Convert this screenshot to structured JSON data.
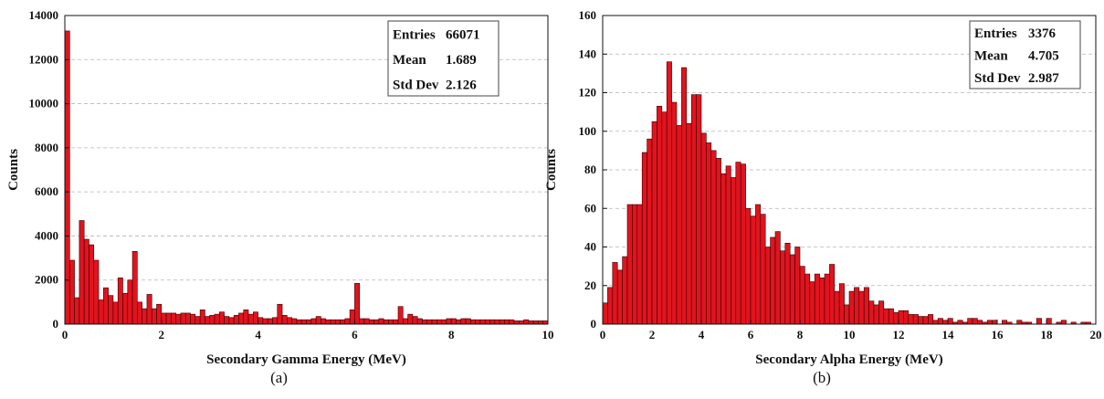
{
  "chart_data": [
    {
      "type": "bar",
      "xlabel": "Secondary Gamma Energy (MeV)",
      "ylabel": "Counts",
      "xlim": [
        0,
        10
      ],
      "ylim": [
        0,
        14000
      ],
      "xticks": [
        0,
        2,
        4,
        6,
        8,
        10
      ],
      "yticks": [
        0,
        2000,
        4000,
        6000,
        8000,
        10000,
        12000,
        14000
      ],
      "grid": "y-dashed",
      "bar_color": "#e0141e",
      "bin_width": 0.1,
      "x": [
        0.0,
        0.1,
        0.2,
        0.3,
        0.4,
        0.5,
        0.6,
        0.7,
        0.8,
        0.9,
        1.0,
        1.1,
        1.2,
        1.3,
        1.4,
        1.5,
        1.6,
        1.7,
        1.8,
        1.9,
        2.0,
        2.1,
        2.2,
        2.3,
        2.4,
        2.5,
        2.6,
        2.7,
        2.8,
        2.9,
        3.0,
        3.1,
        3.2,
        3.3,
        3.4,
        3.5,
        3.6,
        3.7,
        3.8,
        3.9,
        4.0,
        4.1,
        4.2,
        4.3,
        4.4,
        4.5,
        4.6,
        4.7,
        4.8,
        4.9,
        5.0,
        5.1,
        5.2,
        5.3,
        5.4,
        5.5,
        5.6,
        5.7,
        5.8,
        5.9,
        6.0,
        6.1,
        6.2,
        6.3,
        6.4,
        6.5,
        6.6,
        6.7,
        6.8,
        6.9,
        7.0,
        7.1,
        7.2,
        7.3,
        7.4,
        7.5,
        7.6,
        7.7,
        7.8,
        7.9,
        8.0,
        8.1,
        8.2,
        8.3,
        8.4,
        8.5,
        8.6,
        8.7,
        8.8,
        8.9,
        9.0,
        9.1,
        9.2,
        9.3,
        9.4,
        9.5,
        9.6,
        9.7,
        9.8,
        9.9
      ],
      "values": [
        13300,
        2900,
        1200,
        4700,
        3850,
        3600,
        2900,
        1100,
        1650,
        1300,
        1000,
        2100,
        1400,
        2000,
        3300,
        1000,
        700,
        1350,
        700,
        900,
        500,
        500,
        500,
        450,
        500,
        500,
        450,
        350,
        650,
        350,
        400,
        450,
        550,
        350,
        300,
        400,
        500,
        650,
        450,
        550,
        300,
        250,
        250,
        300,
        900,
        400,
        300,
        250,
        200,
        200,
        200,
        250,
        350,
        250,
        200,
        200,
        200,
        200,
        250,
        650,
        1850,
        250,
        250,
        200,
        200,
        250,
        200,
        200,
        200,
        800,
        250,
        450,
        350,
        250,
        200,
        200,
        200,
        200,
        200,
        250,
        250,
        200,
        250,
        250,
        200,
        200,
        200,
        200,
        200,
        200,
        200,
        200,
        200,
        150,
        150,
        200,
        150,
        150,
        150,
        150
      ],
      "stats": [
        {
          "label": "Entries",
          "value": "66071"
        },
        {
          "label": "Mean",
          "value": "1.689"
        },
        {
          "label": "Std Dev",
          "value": "2.126"
        }
      ],
      "stats_placement": "top-right",
      "caption": "(a)"
    },
    {
      "type": "bar",
      "xlabel": "Secondary Alpha Energy (MeV)",
      "ylabel": "Counts",
      "xlim": [
        0,
        20
      ],
      "ylim": [
        0,
        160
      ],
      "xticks": [
        0,
        2,
        4,
        6,
        8,
        10,
        12,
        14,
        16,
        18,
        20
      ],
      "yticks": [
        0,
        20,
        40,
        60,
        80,
        100,
        120,
        140,
        160
      ],
      "grid": "y-dashed",
      "bar_color": "#e0141e",
      "bin_width": 0.2,
      "x": [
        0.0,
        0.2,
        0.4,
        0.6,
        0.8,
        1.0,
        1.2,
        1.4,
        1.6,
        1.8,
        2.0,
        2.2,
        2.4,
        2.6,
        2.8,
        3.0,
        3.2,
        3.4,
        3.6,
        3.8,
        4.0,
        4.2,
        4.4,
        4.6,
        4.8,
        5.0,
        5.2,
        5.4,
        5.6,
        5.8,
        6.0,
        6.2,
        6.4,
        6.6,
        6.8,
        7.0,
        7.2,
        7.4,
        7.6,
        7.8,
        8.0,
        8.2,
        8.4,
        8.6,
        8.8,
        9.0,
        9.2,
        9.4,
        9.6,
        9.8,
        10.0,
        10.2,
        10.4,
        10.6,
        10.8,
        11.0,
        11.2,
        11.4,
        11.6,
        11.8,
        12.0,
        12.2,
        12.4,
        12.6,
        12.8,
        13.0,
        13.2,
        13.4,
        13.6,
        13.8,
        14.0,
        14.2,
        14.4,
        14.6,
        14.8,
        15.0,
        15.2,
        15.4,
        15.6,
        15.8,
        16.0,
        16.2,
        16.4,
        16.6,
        16.8,
        17.0,
        17.2,
        17.4,
        17.6,
        17.8,
        18.0,
        18.2,
        18.4,
        18.6,
        18.8,
        19.0,
        19.2,
        19.4,
        19.6,
        19.8
      ],
      "values": [
        11,
        19,
        32,
        28,
        35,
        62,
        62,
        62,
        89,
        96,
        105,
        113,
        110,
        136,
        115,
        103,
        133,
        104,
        119,
        119,
        99,
        94,
        90,
        86,
        78,
        82,
        76,
        84,
        83,
        60,
        56,
        62,
        57,
        40,
        45,
        48,
        38,
        42,
        36,
        40,
        30,
        26,
        22,
        26,
        24,
        26,
        31,
        17,
        21,
        10,
        17,
        19,
        17,
        19,
        12,
        10,
        12,
        8,
        8,
        6,
        7,
        7,
        5,
        5,
        4,
        4,
        5,
        2,
        3,
        2,
        3,
        1,
        2,
        1,
        3,
        3,
        2,
        1,
        2,
        2,
        0,
        2,
        1,
        0,
        2,
        1,
        1,
        0,
        3,
        0,
        3,
        0,
        1,
        2,
        0,
        1,
        0,
        1,
        1,
        0
      ],
      "stats": [
        {
          "label": "Entries",
          "value": "3376"
        },
        {
          "label": "Mean",
          "value": "4.705"
        },
        {
          "label": "Std Dev",
          "value": "2.987"
        }
      ],
      "stats_placement": "top-right",
      "caption": "(b)"
    }
  ]
}
